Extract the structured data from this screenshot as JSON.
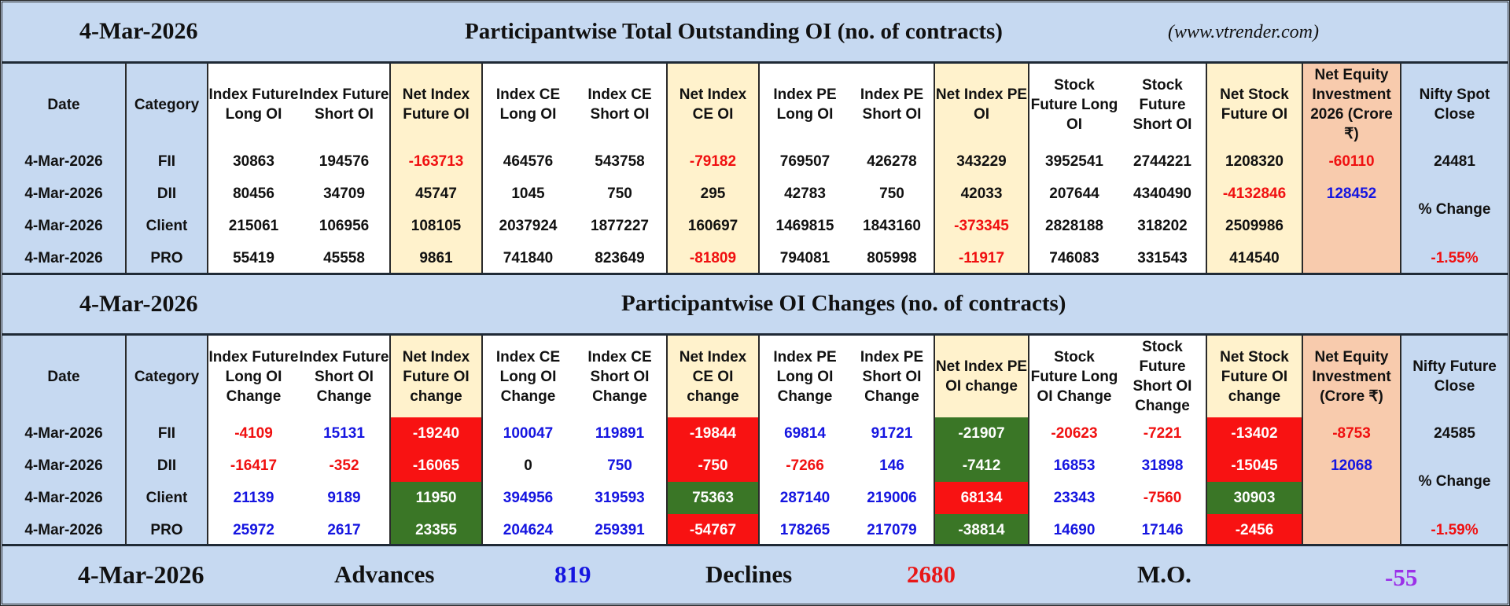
{
  "colors": {
    "header_blue": "#c6d9f1",
    "cream": "#fff2cc",
    "orange": "#f8cbad",
    "red": "#f81212",
    "green": "#3a7626",
    "blue_text": "#1515e0",
    "red_text": "#f01010",
    "purple_text": "#9b30e8"
  },
  "section1": {
    "date": "4-Mar-2026",
    "title": "Participantwise Total Outstanding OI (no. of contracts)",
    "site": "(www.vtrender.com)",
    "headers": [
      "Date",
      "Category",
      "Index Future Long OI",
      "Index Future Short OI",
      "Net Index Future OI",
      "Index CE Long OI",
      "Index CE Short OI",
      "Net Index CE OI",
      "Index PE Long OI",
      "Index PE Short OI",
      "Net Index PE OI",
      "Stock Future Long OI",
      "Stock Future Short OI",
      "Net Stock Future OI",
      "Net Equity Investment 2026 (Crore ₹)",
      "Nifty Spot Close"
    ],
    "rows": [
      {
        "date": "4-Mar-2026",
        "category": "FII",
        "cells": [
          {
            "v": "30863"
          },
          {
            "v": "194576"
          },
          {
            "v": "-163713",
            "c": "red"
          },
          {
            "v": "464576"
          },
          {
            "v": "543758"
          },
          {
            "v": "-79182",
            "c": "red"
          },
          {
            "v": "769507"
          },
          {
            "v": "426278"
          },
          {
            "v": "343229"
          },
          {
            "v": "3952541"
          },
          {
            "v": "2744221"
          },
          {
            "v": "1208320"
          },
          {
            "v": "-60110",
            "c": "red"
          }
        ]
      },
      {
        "date": "4-Mar-2026",
        "category": "DII",
        "cells": [
          {
            "v": "80456"
          },
          {
            "v": "34709"
          },
          {
            "v": "45747"
          },
          {
            "v": "1045"
          },
          {
            "v": "750"
          },
          {
            "v": "295"
          },
          {
            "v": "42783"
          },
          {
            "v": "750"
          },
          {
            "v": "42033"
          },
          {
            "v": "207644"
          },
          {
            "v": "4340490"
          },
          {
            "v": "-4132846",
            "c": "red"
          },
          {
            "v": "128452",
            "c": "blue"
          }
        ]
      },
      {
        "date": "4-Mar-2026",
        "category": "Client",
        "cells": [
          {
            "v": "215061"
          },
          {
            "v": "106956"
          },
          {
            "v": "108105"
          },
          {
            "v": "2037924"
          },
          {
            "v": "1877227"
          },
          {
            "v": "160697"
          },
          {
            "v": "1469815"
          },
          {
            "v": "1843160"
          },
          {
            "v": "-373345",
            "c": "red"
          },
          {
            "v": "2828188"
          },
          {
            "v": "318202"
          },
          {
            "v": "2509986"
          },
          {
            "v": ""
          }
        ]
      },
      {
        "date": "4-Mar-2026",
        "category": "PRO",
        "cells": [
          {
            "v": "55419"
          },
          {
            "v": "45558"
          },
          {
            "v": "9861"
          },
          {
            "v": "741840"
          },
          {
            "v": "823649"
          },
          {
            "v": "-81809",
            "c": "red"
          },
          {
            "v": "794081"
          },
          {
            "v": "805998"
          },
          {
            "v": "-11917",
            "c": "red"
          },
          {
            "v": "746083"
          },
          {
            "v": "331543"
          },
          {
            "v": "414540"
          },
          {
            "v": ""
          }
        ]
      }
    ],
    "nifty": {
      "close": "24481",
      "change_label": "% Change",
      "change": "-1.55%"
    }
  },
  "section2": {
    "date": "4-Mar-2026",
    "title": "Participantwise OI Changes (no. of contracts)",
    "headers": [
      "Date",
      "Category",
      "Index Future Long OI Change",
      "Index Future Short OI Change",
      "Net Index Future OI change",
      "Index CE Long OI Change",
      "Index CE Short OI Change",
      "Net Index CE OI change",
      "Index PE Long OI Change",
      "Index PE Short OI Change",
      "Net Index PE OI change",
      "Stock Future Long OI Change",
      "Stock Future Short OI Change",
      "Net Stock Future OI change",
      "Net Equity Investment (Crore ₹)",
      "Nifty Future Close"
    ],
    "rows": [
      {
        "date": "4-Mar-2026",
        "category": "FII",
        "cells": [
          {
            "v": "-4109",
            "c": "red"
          },
          {
            "v": "15131",
            "c": "blue"
          },
          {
            "v": "-19240",
            "bg": "red"
          },
          {
            "v": "100047",
            "c": "blue"
          },
          {
            "v": "119891",
            "c": "blue"
          },
          {
            "v": "-19844",
            "bg": "red"
          },
          {
            "v": "69814",
            "c": "blue"
          },
          {
            "v": "91721",
            "c": "blue"
          },
          {
            "v": "-21907",
            "bg": "green"
          },
          {
            "v": "-20623",
            "c": "red"
          },
          {
            "v": "-7221",
            "c": "red"
          },
          {
            "v": "-13402",
            "bg": "red"
          },
          {
            "v": "-8753",
            "c": "red"
          }
        ]
      },
      {
        "date": "4-Mar-2026",
        "category": "DII",
        "cells": [
          {
            "v": "-16417",
            "c": "red"
          },
          {
            "v": "-352",
            "c": "red"
          },
          {
            "v": "-16065",
            "bg": "red"
          },
          {
            "v": "0",
            "c": "black"
          },
          {
            "v": "750",
            "c": "blue"
          },
          {
            "v": "-750",
            "bg": "red"
          },
          {
            "v": "-7266",
            "c": "red"
          },
          {
            "v": "146",
            "c": "blue"
          },
          {
            "v": "-7412",
            "bg": "green"
          },
          {
            "v": "16853",
            "c": "blue"
          },
          {
            "v": "31898",
            "c": "blue"
          },
          {
            "v": "-15045",
            "bg": "red"
          },
          {
            "v": "12068",
            "c": "blue"
          }
        ]
      },
      {
        "date": "4-Mar-2026",
        "category": "Client",
        "cells": [
          {
            "v": "21139",
            "c": "blue"
          },
          {
            "v": "9189",
            "c": "blue"
          },
          {
            "v": "11950",
            "bg": "green"
          },
          {
            "v": "394956",
            "c": "blue"
          },
          {
            "v": "319593",
            "c": "blue"
          },
          {
            "v": "75363",
            "bg": "green"
          },
          {
            "v": "287140",
            "c": "blue"
          },
          {
            "v": "219006",
            "c": "blue"
          },
          {
            "v": "68134",
            "bg": "red"
          },
          {
            "v": "23343",
            "c": "blue"
          },
          {
            "v": "-7560",
            "c": "red"
          },
          {
            "v": "30903",
            "bg": "green"
          },
          {
            "v": ""
          }
        ]
      },
      {
        "date": "4-Mar-2026",
        "category": "PRO",
        "cells": [
          {
            "v": "25972",
            "c": "blue"
          },
          {
            "v": "2617",
            "c": "blue"
          },
          {
            "v": "23355",
            "bg": "green"
          },
          {
            "v": "204624",
            "c": "blue"
          },
          {
            "v": "259391",
            "c": "blue"
          },
          {
            "v": "-54767",
            "bg": "red"
          },
          {
            "v": "178265",
            "c": "blue"
          },
          {
            "v": "217079",
            "c": "blue"
          },
          {
            "v": "-38814",
            "bg": "green"
          },
          {
            "v": "14690",
            "c": "blue"
          },
          {
            "v": "17146",
            "c": "blue"
          },
          {
            "v": "-2456",
            "bg": "red"
          },
          {
            "v": ""
          }
        ]
      }
    ],
    "nifty": {
      "close": "24585",
      "change_label": "% Change",
      "change": "-1.59%"
    }
  },
  "footer": {
    "date": "4-Mar-2026",
    "advances_label": "Advances",
    "advances": "819",
    "declines_label": "Declines",
    "declines": "2680",
    "mo_label": "M.O.",
    "mo": "-55"
  }
}
